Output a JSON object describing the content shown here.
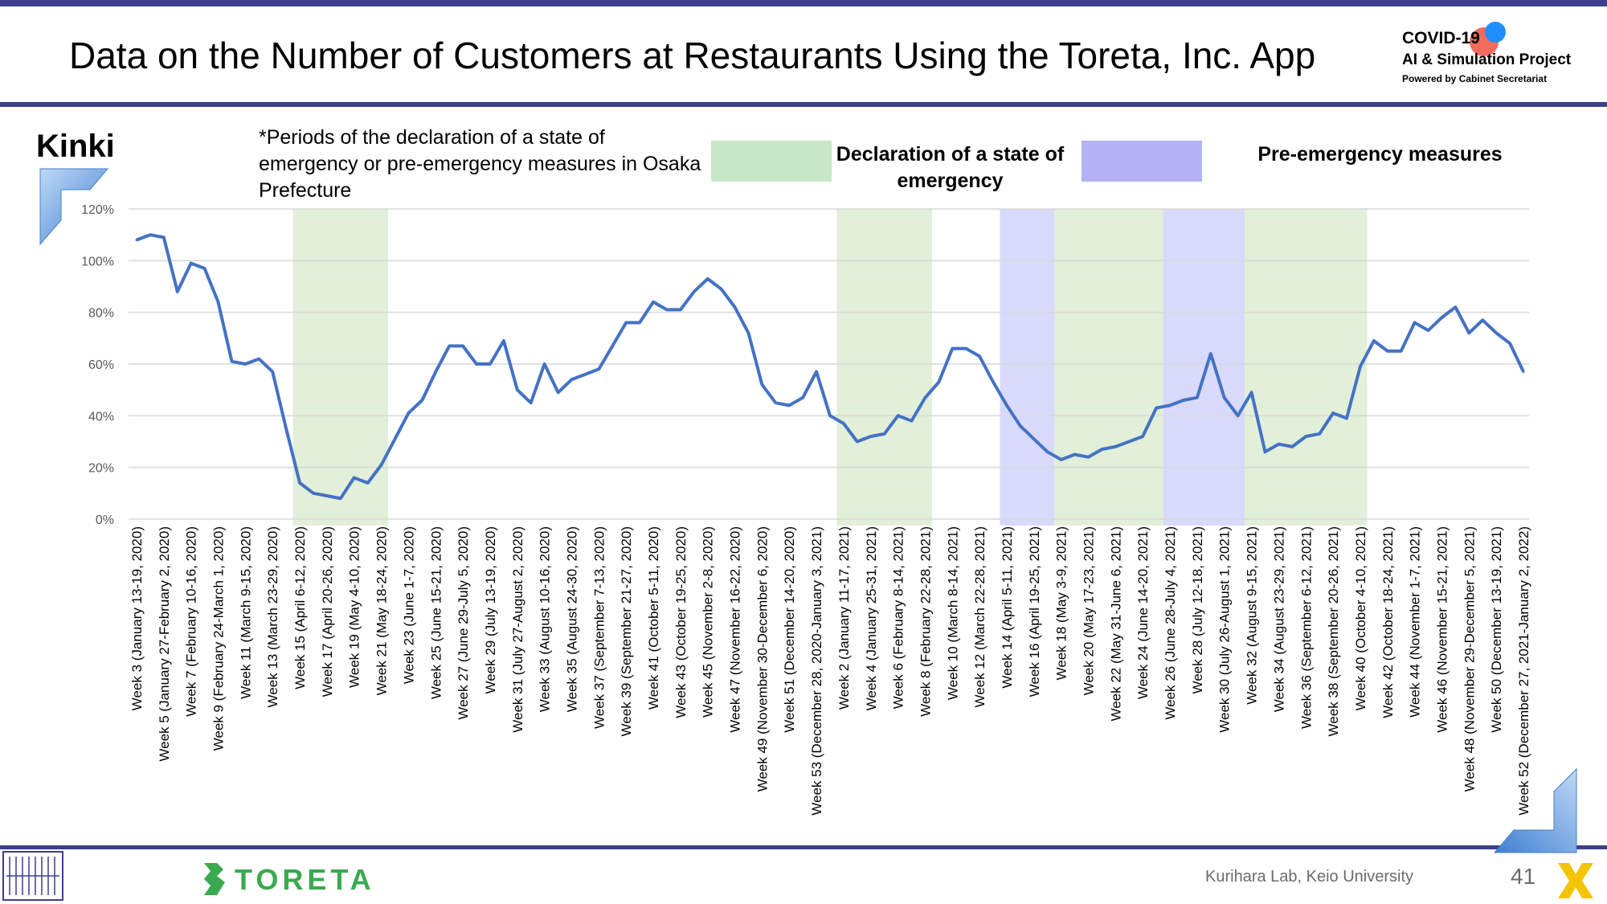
{
  "header": {
    "title": "Data on the Number of Customers at Restaurants Using the Toreta, Inc. App",
    "project_line1": "COVID-19",
    "project_line2": "AI & Simulation Project",
    "project_line3": "Powered by Cabinet Secretariat"
  },
  "region_label": "Kinki",
  "note": "*Periods of the declaration of a state of emergency or pre-emergency measures in Osaka Prefecture",
  "legend": {
    "emergency_label": "Declaration of a state of emergency",
    "pre_emergency_label": "Pre-emergency measures",
    "emergency_color": "#c6e8c8",
    "pre_emergency_color": "#b3b3f5"
  },
  "footer": {
    "company": "TORETA",
    "lab": "Kurihara Lab, Keio University",
    "page": "41"
  },
  "colors": {
    "band": "#3d3e8f",
    "line": "#4472c4",
    "emergency_shade": "#e2efd9",
    "pre_emergency_shade": "#d9d9fb",
    "accent_blue": "#5b9bd5"
  },
  "chart_data": {
    "type": "line",
    "title": "",
    "xlabel": "",
    "ylabel": "",
    "ylim": [
      0,
      120
    ],
    "y_unit": "%",
    "y_ticks": [
      "0%",
      "20%",
      "40%",
      "60%",
      "80%",
      "100%",
      "120%"
    ],
    "grid": true,
    "legend_position": "top-right",
    "series": [
      {
        "values": [
          108,
          110,
          109,
          88,
          99,
          97,
          84,
          61,
          60,
          62,
          57,
          35,
          14,
          10,
          9,
          8,
          16,
          14,
          21,
          31,
          41,
          46,
          57,
          67,
          67,
          60,
          60,
          69,
          50,
          45,
          60,
          49,
          54,
          56,
          58,
          67,
          76,
          76,
          84,
          81,
          81,
          88,
          93,
          89,
          82,
          72,
          52,
          45,
          44,
          47,
          57,
          40,
          37,
          30,
          32,
          33,
          40,
          38,
          47,
          53,
          66,
          66,
          63,
          53,
          44,
          36,
          31,
          26,
          23,
          25,
          24,
          27,
          28,
          30,
          32,
          43,
          44,
          46,
          47,
          64,
          47,
          40,
          49,
          26,
          29,
          28,
          32,
          33,
          41,
          39,
          59,
          69,
          65,
          65,
          76,
          73,
          78,
          82,
          72,
          77,
          72,
          68,
          57
        ]
      }
    ],
    "x_tick_labels": [
      "Week 3 (January 13-19, 2020)",
      "Week 5 (January 27-February 2, 2020)",
      "Week 7 (February 10-16, 2020)",
      "Week 9 (February 24-March 1, 2020)",
      "Week 11 (March 9-15, 2020)",
      "Week 13 (March 23-29, 2020)",
      "Week 15 (April 6-12, 2020)",
      "Week 17 (April 20-26, 2020)",
      "Week 19 (May 4-10, 2020)",
      "Week 21 (May 18-24, 2020)",
      "Week 23 (June 1-7, 2020)",
      "Week 25 (June 15-21, 2020)",
      "Week 27 (June 29-July 5, 2020)",
      "Week 29 (July 13-19, 2020)",
      "Week 31 (July 27-August 2, 2020)",
      "Week 33 (August 10-16, 2020)",
      "Week 35 (August 24-30, 2020)",
      "Week 37 (September 7-13, 2020)",
      "Week 39 (September 21-27, 2020)",
      "Week 41 (October 5-11, 2020)",
      "Week 43 (October 19-25, 2020)",
      "Week 45 (November 2-8, 2020)",
      "Week 47 (November 16-22, 2020)",
      "Week 49 (November 30-December 6, 2020)",
      "Week 51 (December 14-20, 2020)",
      "Week 53 (December 28, 2020-January 3, 2021)",
      "Week 2 (January 11-17, 2021)",
      "Week 4 (January 25-31, 2021)",
      "Week 6 (February 8-14, 2021)",
      "Week 8 (February 22-28, 2021)",
      "Week 10 (March 8-14, 2021)",
      "Week 12 (March 22-28, 2021)",
      "Week 14 (April 5-11, 2021)",
      "Week 16 (April 19-25, 2021)",
      "Week 18 (May 3-9, 2021)",
      "Week 20 (May 17-23, 2021)",
      "Week 22 (May 31-June 6, 2021)",
      "Week 24 (June 14-20, 2021)",
      "Week 26 (June 28-July 4, 2021)",
      "Week 28 (July 12-18, 2021)",
      "Week 30 (July 26-August 1, 2021)",
      "Week 32 (August 9-15, 2021)",
      "Week 34 (August 23-29, 2021)",
      "Week 36 (September 6-12, 2021)",
      "Week 38 (September 20-26, 2021)",
      "Week 40 (October 4-10, 2021)",
      "Week 42 (October 18-24, 2021)",
      "Week 44 (November 1-7, 2021)",
      "Week 46 (November 15-21, 2021)",
      "Week 48 (November 29-December 5, 2021)",
      "Week 50 (December 13-19, 2021)",
      "Week 52 (December 27, 2021-January 2, 2022)"
    ],
    "shaded_periods": [
      {
        "type": "emergency",
        "from": "Week 14 (March 30-April 5, 2020)",
        "to": "Week 21 (May 18-24, 2020)",
        "from_index": 11,
        "to_index": 18
      },
      {
        "type": "emergency",
        "from": "Week 1 (January 4-10, 2021)",
        "to": "Week 9 (March 1-7, 2021)",
        "from_index": 51,
        "to_index": 58
      },
      {
        "type": "pre-emergency",
        "from": "Week 14 (April 5-11, 2021)",
        "to": "Week 17 (April 26-May 2, 2021)",
        "from_index": 63,
        "to_index": 67
      },
      {
        "type": "emergency",
        "from": "Week 18 (May 3-9, 2021)",
        "to": "Week 25 (June 21-27, 2021)",
        "from_index": 67,
        "to_index": 75
      },
      {
        "type": "pre-emergency",
        "from": "Week 26 (June 28-July 4, 2021)",
        "to": "Week 31 (August 2-8, 2021)",
        "from_index": 75,
        "to_index": 81
      },
      {
        "type": "emergency",
        "from": "Week 32 (August 9-15, 2021)",
        "to": "Week 39 (September 27-October 3, 2021)",
        "from_index": 81,
        "to_index": 90
      }
    ]
  }
}
